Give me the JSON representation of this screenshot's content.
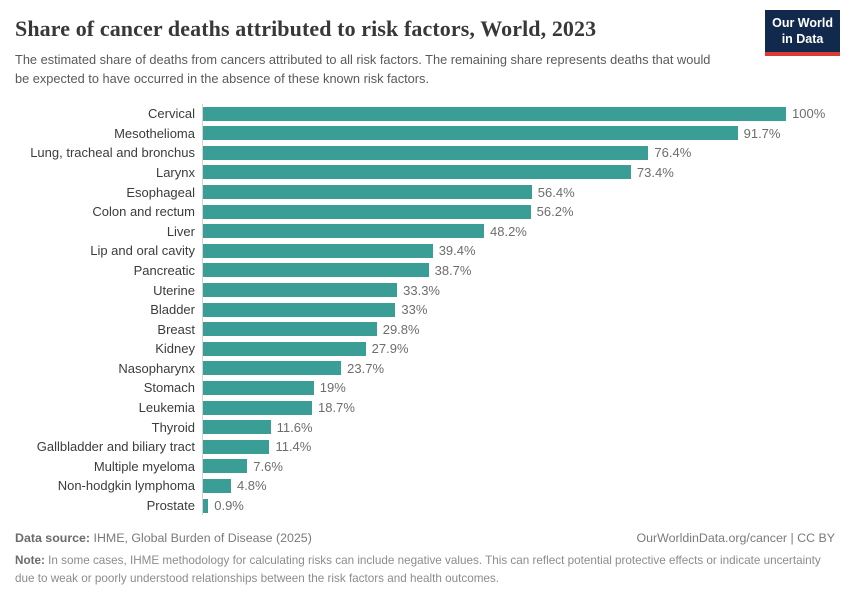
{
  "header": {
    "title": "Share of cancer deaths attributed to risk factors, World, 2023",
    "subtitle": "The estimated share of deaths from cancers attributed to all risk factors. The remaining share represents deaths that would be expected to have occurred in the absence of these known risk factors.",
    "logo": {
      "line1": "Our World",
      "line2": "in Data"
    }
  },
  "chart_data": {
    "type": "bar",
    "orientation": "horizontal",
    "title": "Share of cancer deaths attributed to risk factors, World, 2023",
    "unit": "%",
    "xlim": [
      0,
      100
    ],
    "grid": false,
    "legend": false,
    "categories": [
      "Cervical",
      "Mesothelioma",
      "Lung, tracheal and bronchus",
      "Larynx",
      "Esophageal",
      "Colon and rectum",
      "Liver",
      "Lip and oral cavity",
      "Pancreatic",
      "Uterine",
      "Bladder",
      "Breast",
      "Kidney",
      "Nasopharynx",
      "Stomach",
      "Leukemia",
      "Thyroid",
      "Gallbladder and biliary tract",
      "Multiple myeloma",
      "Non-hodgkin lymphoma",
      "Prostate"
    ],
    "values": [
      100,
      91.7,
      76.4,
      73.4,
      56.4,
      56.2,
      48.2,
      39.4,
      38.7,
      33.3,
      33,
      29.8,
      27.9,
      23.7,
      19,
      18.7,
      11.6,
      11.4,
      7.6,
      4.8,
      0.9
    ],
    "value_labels": [
      "100%",
      "91.7%",
      "76.4%",
      "73.4%",
      "56.4%",
      "56.2%",
      "48.2%",
      "39.4%",
      "38.7%",
      "33.3%",
      "33%",
      "29.8%",
      "27.9%",
      "23.7%",
      "19%",
      "18.7%",
      "11.6%",
      "11.4%",
      "7.6%",
      "4.8%",
      "0.9%"
    ],
    "bar_color": "#3a9e96"
  },
  "footer": {
    "data_source_label": "Data source:",
    "data_source_text": " IHME, Global Burden of Disease (2025)",
    "attribution": "OurWorldinData.org/cancer | CC BY",
    "note_label": "Note:",
    "note_text": " In some cases, IHME methodology for calculating risks can include negative values. This can reflect potential protective effects or indicate uncertainty due to weak or poorly understood relationships between the risk factors and health outcomes."
  },
  "colors": {
    "bar": "#3a9e96",
    "logo_bg": "#12294e",
    "logo_accent": "#dc3a34",
    "axis_line": "#d4d4d4"
  }
}
